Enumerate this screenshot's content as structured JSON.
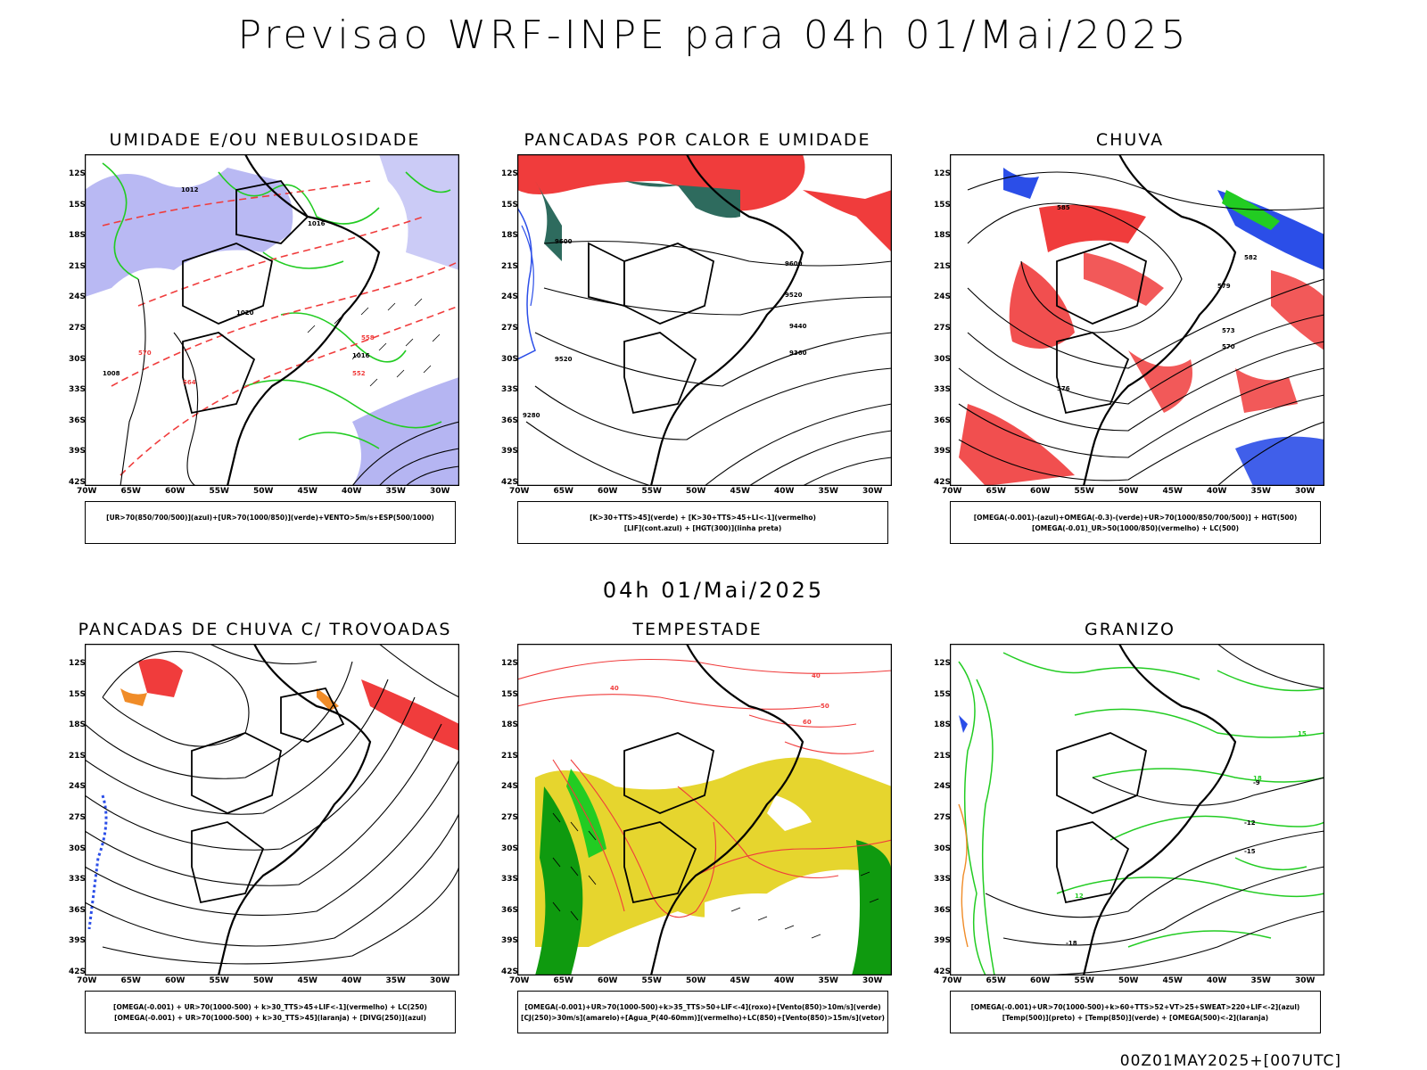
{
  "title": "Previsao WRF-INPE  para 04h 01/Mai/2025",
  "mid_title": "04h 01/Mai/2025",
  "footer": "00Z01MAY2025+[007UTC]",
  "lat_ticks": [
    "12S",
    "15S",
    "18S",
    "21S",
    "24S",
    "27S",
    "30S",
    "33S",
    "36S",
    "39S",
    "42S"
  ],
  "lon_ticks": [
    "70W",
    "65W",
    "60W",
    "55W",
    "50W",
    "45W",
    "40W",
    "35W",
    "30W"
  ],
  "panels": [
    {
      "title": "UMIDADE E/OU NEBULOSIDADE",
      "legend1": "[UR>70(850/700/500)](azul)+[UR>70(1000/850)](verde)+VENTO>5m/s+ESP(500/1000)",
      "legend2": "",
      "labels": [
        "1012",
        "1016",
        "1020",
        "1008",
        "570",
        "564",
        "558",
        "552",
        "1016"
      ]
    },
    {
      "title": "PANCADAS POR CALOR E UMIDADE",
      "legend1": "[K>30+TTS>45](verde) + [K>30+TTS>45+LI<-1](vermelho)",
      "legend2": "[LIF](cont.azul) + [HGT(300)](linha preta)",
      "labels": [
        "9600",
        "9520",
        "9440",
        "9360",
        "9280"
      ]
    },
    {
      "title": "CHUVA",
      "legend1": "[OMEGA(-0.001)-(azul)+OMEGA(-0.3)-(verde)+UR>70(1000/850/700/500)] + HGT(500)",
      "legend2": "[OMEGA(-0.01)_UR>50(1000/850)(vermelho) + LC(500)",
      "labels": [
        "585",
        "582",
        "579",
        "576",
        "573",
        "570"
      ]
    },
    {
      "title": "PANCADAS DE CHUVA C/ TROVOADAS",
      "legend1": "[OMEGA(-0.001) + UR>70(1000-500) + k>30_TTS>45+LIF<-1](vermelho) + LC(250)",
      "legend2": "[OMEGA(-0.001) + UR>70(1000-500) + k>30_TTS>45](laranja) + [DIVG(250)](azul)",
      "labels": []
    },
    {
      "title": "TEMPESTADE",
      "legend1": "[OMEGA(-0.001)+UR>70(1000-500)+k>35_TTS>50+LIF<-4](roxo)+[Vento(850)>10m/s](verde)",
      "legend2": "[CJ(250)>30m/s](amarelo)+[Agua_P(40-60mm)](vermelho)+LC(850)+[Vento(850)>15m/s](vetor)",
      "labels": [
        "40",
        "50",
        "60"
      ]
    },
    {
      "title": "GRANIZO",
      "legend1": "[OMEGA(-0.001)+UR>70(1000-500)+k>60+TTS>52+VT>25+SWEAT>220+LIF<-2](azul)",
      "legend2": "[Temp(500)](preto) + [Temp(850)](verde) + [OMEGA(500)<-2](laranja)",
      "labels": [
        "-9",
        "-12",
        "-15",
        "-18",
        "12",
        "15",
        "18"
      ]
    }
  ],
  "colors": {
    "blue": "#2b4ee8",
    "lavender": "#a8a8f0",
    "green": "#22cc22",
    "red": "#f03c3c",
    "orange": "#f08c28",
    "yellow": "#e6d52e",
    "teal": "#2e6b5e",
    "darkgreen": "#0f9a0f"
  }
}
